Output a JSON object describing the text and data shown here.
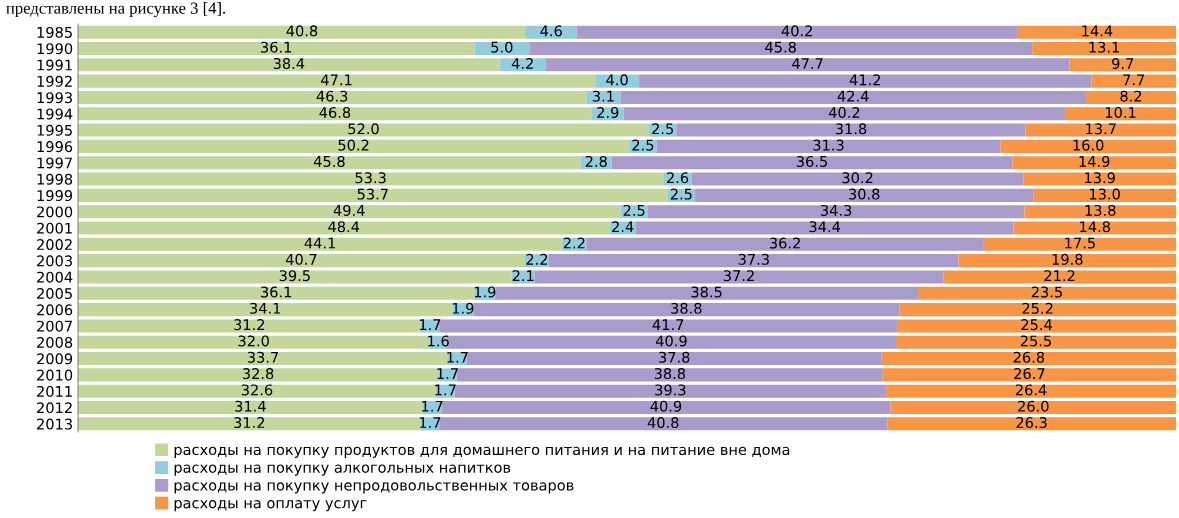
{
  "chart_data": {
    "type": "bar",
    "orientation": "horizontal",
    "stacked": true,
    "legend": "bottom",
    "annotations": [
      "представлены на рисунке 3 [4]."
    ],
    "categories": [
      "1985",
      "1990",
      "1991",
      "1992",
      "1993",
      "1994",
      "1995",
      "1996",
      "1997",
      "1998",
      "1999",
      "2000",
      "2001",
      "2002",
      "2003",
      "2004",
      "2005",
      "2006",
      "2007",
      "2008",
      "2009",
      "2010",
      "2011",
      "2012",
      "2013"
    ],
    "xlim": [
      0,
      100
    ],
    "series": [
      {
        "name": "расходы на покупку продуктов для домашнего питания и на питание вне дома",
        "color": "#c3d69b",
        "values": [
          40.8,
          36.1,
          38.4,
          47.1,
          46.3,
          46.8,
          52.0,
          50.2,
          45.8,
          53.3,
          53.7,
          49.4,
          48.4,
          44.1,
          40.7,
          39.5,
          36.1,
          34.1,
          31.2,
          32.0,
          33.7,
          32.8,
          32.6,
          31.4,
          31.2
        ],
        "value_labels": [
          "40.8",
          "36.1",
          "38.4",
          "47.1",
          "46.3",
          "46.8",
          "52.0",
          "50.2",
          "45.8",
          "53.3",
          "53.7",
          "49.4",
          "48.4",
          "44.1",
          "40.7",
          "39.5",
          "36.1",
          "34.1",
          "31.2",
          "32.0",
          "33.7",
          "32.8",
          "32.6",
          "31.4",
          "31.2"
        ]
      },
      {
        "name": "расходы на покупку алкогольных напитков",
        "color": "#93cddd",
        "values": [
          4.6,
          5.0,
          4.2,
          4.0,
          3.1,
          2.9,
          2.5,
          2.5,
          2.8,
          2.6,
          2.5,
          2.5,
          2.4,
          2.2,
          2.2,
          2.1,
          1.9,
          1.9,
          1.7,
          1.6,
          1.7,
          1.7,
          1.7,
          1.7,
          1.7
        ],
        "value_labels": [
          "4.6",
          "5.0",
          "4.2",
          "4.0",
          "3.1",
          "2.9",
          "2.5",
          "2.5",
          "2.8",
          "2.6",
          "2.5",
          "2.5",
          "2.4",
          "2.2",
          "2.2",
          "2.1",
          "1.9",
          "1.9",
          "1.7",
          "1.6",
          "1.7",
          "1.7",
          "1.7",
          "1.7",
          "1.7"
        ]
      },
      {
        "name": "расходы на покупку непродовольственных товаров",
        "color": "#a99bcb",
        "values": [
          40.2,
          45.8,
          47.7,
          41.2,
          42.4,
          40.2,
          31.8,
          31.3,
          36.5,
          30.2,
          30.8,
          34.3,
          34.4,
          36.2,
          37.3,
          37.2,
          38.5,
          38.8,
          41.7,
          40.9,
          37.8,
          38.8,
          39.3,
          40.9,
          40.8
        ],
        "value_labels": [
          "40.2",
          "45.8",
          "47.7",
          "41.2",
          "42.4",
          "40.2",
          "31.8",
          "31.3",
          "36.5",
          "30.2",
          "30.8",
          "34.3",
          "34.4",
          "36.2",
          "37.3",
          "37.2",
          "38.5",
          "38.8",
          "41.7",
          "40.9",
          "37.8",
          "38.8",
          "39.3",
          "40.9",
          "40.8"
        ]
      },
      {
        "name": "расходы на оплату услуг",
        "color": "#f79646",
        "values": [
          14.4,
          13.1,
          9.7,
          7.7,
          8.2,
          10.1,
          13.7,
          16.0,
          14.9,
          13.9,
          13.0,
          13.8,
          14.8,
          17.5,
          19.8,
          21.2,
          23.5,
          25.2,
          25.4,
          25.5,
          26.8,
          26.7,
          26.4,
          26.0,
          26.3
        ],
        "value_labels": [
          "14.4",
          "13.1",
          "9.7",
          "7.7",
          "8.2",
          "10.1",
          "13.7",
          "16.0",
          "14.9",
          "13.9",
          "13.0",
          "13.8",
          "14.8",
          "17.5",
          "19.8",
          "21.2",
          "23.5",
          "25.2",
          "25.4",
          "25.5",
          "26.8",
          "26.7",
          "26.4",
          "26.0",
          "26.3"
        ]
      }
    ]
  }
}
